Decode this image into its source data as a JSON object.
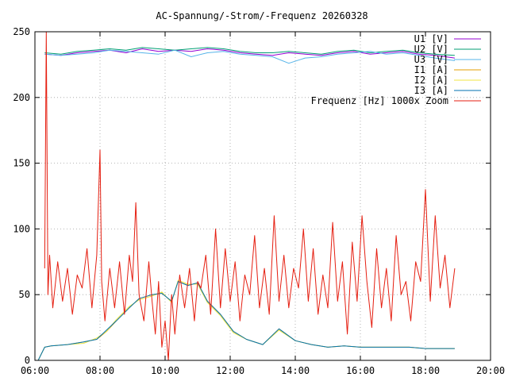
{
  "chart_data": {
    "type": "line",
    "title": "AC-Spannung/-Strom/-Frequenz 20260328",
    "xlabel": "",
    "ylabel": "",
    "xlim": [
      6,
      20
    ],
    "ylim": [
      0,
      250
    ],
    "x_ticks": [
      {
        "value": 6,
        "label": "06:00"
      },
      {
        "value": 8,
        "label": "08:00"
      },
      {
        "value": 10,
        "label": "10:00"
      },
      {
        "value": 12,
        "label": "12:00"
      },
      {
        "value": 14,
        "label": "14:00"
      },
      {
        "value": 16,
        "label": "16:00"
      },
      {
        "value": 18,
        "label": "18:00"
      },
      {
        "value": 20,
        "label": "20:00"
      }
    ],
    "y_ticks": [
      {
        "value": 0,
        "label": "0"
      },
      {
        "value": 50,
        "label": "50"
      },
      {
        "value": 100,
        "label": "100"
      },
      {
        "value": 150,
        "label": "150"
      },
      {
        "value": 200,
        "label": "200"
      },
      {
        "value": 250,
        "label": "250"
      }
    ],
    "grid": true,
    "legend_position": "top-right",
    "series": [
      {
        "name": "U1 [V]",
        "color": "#9400d3",
        "x": [
          6.3,
          6.8,
          7.3,
          7.8,
          8.3,
          8.8,
          9.3,
          9.8,
          10.3,
          10.8,
          11.3,
          11.8,
          12.3,
          12.8,
          13.3,
          13.8,
          14.3,
          14.8,
          15.3,
          15.8,
          16.3,
          16.8,
          17.3,
          17.8,
          18.3,
          18.9
        ],
        "y": [
          233,
          232,
          234,
          235,
          236,
          234,
          237,
          235,
          236,
          235,
          237,
          236,
          234,
          233,
          232,
          234,
          233,
          232,
          234,
          235,
          233,
          234,
          235,
          233,
          232,
          230
        ]
      },
      {
        "name": "U2 [V]",
        "color": "#009e73",
        "x": [
          6.3,
          6.8,
          7.3,
          7.8,
          8.3,
          8.8,
          9.3,
          9.8,
          10.3,
          10.8,
          11.3,
          11.8,
          12.3,
          12.8,
          13.3,
          13.8,
          14.3,
          14.8,
          15.3,
          15.8,
          16.3,
          16.8,
          17.3,
          17.8,
          18.3,
          18.9
        ],
        "y": [
          234,
          233,
          235,
          236,
          237,
          236,
          238,
          237,
          236,
          237,
          238,
          237,
          235,
          234,
          234,
          235,
          234,
          233,
          235,
          236,
          234,
          235,
          236,
          234,
          233,
          232
        ]
      },
      {
        "name": "U3 [V]",
        "color": "#56b4e9",
        "x": [
          6.3,
          6.8,
          7.3,
          7.8,
          8.3,
          8.8,
          9.3,
          9.8,
          10.3,
          10.8,
          11.3,
          11.8,
          12.3,
          12.8,
          13.3,
          13.8,
          14.3,
          14.8,
          15.3,
          15.8,
          16.3,
          16.8,
          17.3,
          17.8,
          18.3,
          18.9
        ],
        "y": [
          233,
          232,
          233,
          234,
          236,
          235,
          234,
          233,
          236,
          231,
          234,
          235,
          233,
          232,
          231,
          226,
          230,
          231,
          233,
          234,
          235,
          233,
          234,
          232,
          230,
          228
        ]
      },
      {
        "name": "I1 [A]",
        "color": "#e69f00",
        "x": [
          6.1,
          6.3,
          6.5,
          7.0,
          7.5,
          7.9,
          8.2,
          8.5,
          8.9,
          9.2,
          9.6,
          9.9,
          10.2,
          10.4,
          10.7,
          11.0,
          11.3,
          11.7,
          12.1,
          12.5,
          13.0,
          13.5,
          14.0,
          14.5,
          15.0,
          15.5,
          16.0,
          16.5,
          17.0,
          17.5,
          18.0,
          18.5,
          18.9
        ],
        "y": [
          0,
          10,
          11,
          12,
          14,
          16,
          22,
          30,
          40,
          47,
          50,
          51,
          45,
          60,
          57,
          59,
          45,
          35,
          22,
          16,
          12,
          24,
          15,
          12,
          10,
          11,
          10,
          10,
          10,
          10,
          9,
          9,
          9
        ]
      },
      {
        "name": "I2 [A]",
        "color": "#f0e442",
        "x": [
          6.1,
          6.3,
          6.5,
          7.0,
          7.5,
          7.9,
          8.2,
          8.5,
          8.9,
          9.2,
          9.6,
          9.9,
          10.2,
          10.4,
          10.7,
          11.0,
          11.3,
          11.7,
          12.1,
          12.5,
          13.0,
          13.5,
          14.0,
          14.5,
          15.0,
          15.5,
          16.0,
          16.5,
          17.0,
          17.5,
          18.0,
          18.5,
          18.9
        ],
        "y": [
          0,
          10,
          11,
          12,
          13,
          17,
          22,
          31,
          41,
          46,
          49,
          52,
          44,
          61,
          58,
          58,
          44,
          34,
          21,
          16,
          12,
          23,
          15,
          12,
          10,
          11,
          10,
          10,
          10,
          10,
          9,
          9,
          9
        ]
      },
      {
        "name": "I3 [A]",
        "color": "#0072b2",
        "x": [
          6.1,
          6.3,
          6.5,
          7.0,
          7.5,
          7.9,
          8.2,
          8.5,
          8.9,
          9.2,
          9.6,
          9.9,
          10.2,
          10.4,
          10.7,
          11.0,
          11.3,
          11.7,
          12.1,
          12.5,
          13.0,
          13.5,
          14.0,
          14.5,
          15.0,
          15.5,
          16.0,
          16.5,
          17.0,
          17.5,
          18.0,
          18.5,
          18.9
        ],
        "y": [
          0,
          10,
          11,
          12,
          14,
          16,
          23,
          30,
          40,
          47,
          50,
          51,
          45,
          60,
          57,
          59,
          45,
          35,
          22,
          16,
          12,
          24,
          15,
          12,
          10,
          11,
          10,
          10,
          10,
          10,
          9,
          9,
          9
        ]
      },
      {
        "name": "Frequenz [Hz] 1000x Zoom",
        "color": "#e51e10",
        "x": [
          6.3,
          6.35,
          6.4,
          6.45,
          6.55,
          6.7,
          6.85,
          7.0,
          7.15,
          7.3,
          7.45,
          7.6,
          7.75,
          7.9,
          8.0,
          8.05,
          8.15,
          8.3,
          8.45,
          8.6,
          8.75,
          8.9,
          9.0,
          9.1,
          9.2,
          9.35,
          9.5,
          9.6,
          9.7,
          9.8,
          9.9,
          10.0,
          10.1,
          10.2,
          10.3,
          10.45,
          10.6,
          10.75,
          10.9,
          11.0,
          11.1,
          11.25,
          11.4,
          11.55,
          11.7,
          11.85,
          12.0,
          12.15,
          12.3,
          12.45,
          12.6,
          12.75,
          12.9,
          13.05,
          13.2,
          13.35,
          13.5,
          13.65,
          13.8,
          13.95,
          14.1,
          14.25,
          14.4,
          14.55,
          14.7,
          14.85,
          15.0,
          15.15,
          15.3,
          15.45,
          15.6,
          15.75,
          15.9,
          16.05,
          16.2,
          16.35,
          16.5,
          16.65,
          16.8,
          16.95,
          17.1,
          17.25,
          17.4,
          17.55,
          17.7,
          17.85,
          18.0,
          18.15,
          18.3,
          18.45,
          18.6,
          18.75,
          18.9
        ],
        "y": [
          70,
          250,
          50,
          80,
          40,
          75,
          45,
          70,
          35,
          65,
          55,
          85,
          40,
          80,
          160,
          60,
          30,
          70,
          40,
          75,
          35,
          80,
          60,
          120,
          50,
          30,
          75,
          45,
          20,
          60,
          10,
          30,
          0,
          50,
          20,
          65,
          40,
          70,
          30,
          60,
          55,
          80,
          35,
          100,
          40,
          85,
          45,
          75,
          30,
          65,
          50,
          95,
          40,
          70,
          35,
          110,
          45,
          80,
          40,
          70,
          55,
          100,
          45,
          85,
          35,
          65,
          40,
          105,
          45,
          75,
          20,
          90,
          45,
          110,
          60,
          25,
          85,
          40,
          70,
          30,
          95,
          50,
          60,
          30,
          75,
          60,
          130,
          45,
          110,
          55,
          80,
          40,
          70
        ]
      }
    ]
  }
}
